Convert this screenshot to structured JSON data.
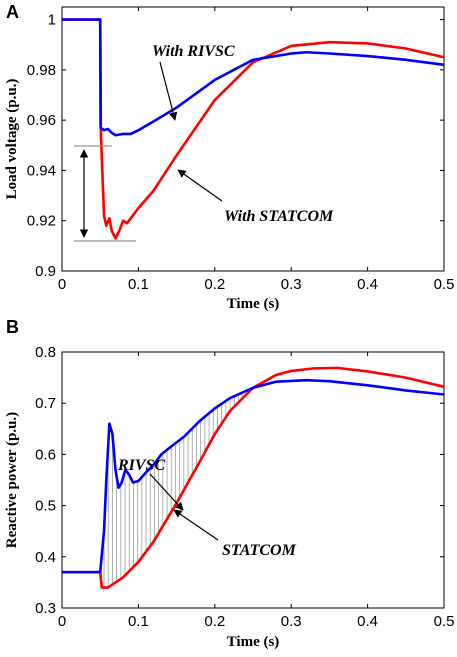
{
  "chart_data": [
    {
      "type": "line",
      "panel_label": "A",
      "xlabel": "Time (s)",
      "ylabel": "Load voltage (p.u.)",
      "xlim": [
        0,
        0.5
      ],
      "ylim": [
        0.9,
        1.005
      ],
      "xticks": [
        "0",
        "0.1",
        "0.2",
        "0.3",
        "0.4",
        "0.5"
      ],
      "yticks": [
        "0.9",
        "0.92",
        "0.94",
        "0.96",
        "0.98",
        "1"
      ],
      "xtick_values": [
        0,
        0.1,
        0.2,
        0.3,
        0.4,
        0.5
      ],
      "ytick_values": [
        0.9,
        0.92,
        0.94,
        0.96,
        0.98,
        1.0
      ],
      "series": [
        {
          "label": "With RIVSC",
          "color": "#0000ff",
          "points": [
            [
              0,
              1.0
            ],
            [
              0.05,
              1.0
            ],
            [
              0.0505,
              0.957
            ],
            [
              0.055,
              0.956
            ],
            [
              0.06,
              0.9565
            ],
            [
              0.065,
              0.955
            ],
            [
              0.07,
              0.954
            ],
            [
              0.08,
              0.9545
            ],
            [
              0.09,
              0.9545
            ],
            [
              0.1,
              0.956
            ],
            [
              0.12,
              0.9595
            ],
            [
              0.15,
              0.965
            ],
            [
              0.2,
              0.976
            ],
            [
              0.25,
              0.984
            ],
            [
              0.3,
              0.9865
            ],
            [
              0.32,
              0.987
            ],
            [
              0.35,
              0.9865
            ],
            [
              0.4,
              0.9855
            ],
            [
              0.45,
              0.984
            ],
            [
              0.5,
              0.982
            ]
          ]
        },
        {
          "label": "With STATCOM",
          "color": "#ff0000",
          "points": [
            [
              0,
              1.0
            ],
            [
              0.05,
              1.0
            ],
            [
              0.051,
              0.954
            ],
            [
              0.055,
              0.922
            ],
            [
              0.058,
              0.918
            ],
            [
              0.062,
              0.921
            ],
            [
              0.065,
              0.916
            ],
            [
              0.07,
              0.913
            ],
            [
              0.075,
              0.916
            ],
            [
              0.08,
              0.92
            ],
            [
              0.085,
              0.919
            ],
            [
              0.09,
              0.921
            ],
            [
              0.1,
              0.925
            ],
            [
              0.12,
              0.932
            ],
            [
              0.15,
              0.946
            ],
            [
              0.2,
              0.968
            ],
            [
              0.25,
              0.983
            ],
            [
              0.3,
              0.9895
            ],
            [
              0.35,
              0.991
            ],
            [
              0.4,
              0.9905
            ],
            [
              0.45,
              0.9885
            ],
            [
              0.5,
              0.985
            ]
          ]
        }
      ],
      "annotations": [
        "With RIVSC",
        "With STATCOM"
      ]
    },
    {
      "type": "line",
      "panel_label": "B",
      "xlabel": "Time (s)",
      "ylabel": "Reactive power (p.u.)",
      "xlim": [
        0,
        0.5
      ],
      "ylim": [
        0.3,
        0.8
      ],
      "xticks": [
        "0",
        "0.1",
        "0.2",
        "0.3",
        "0.4",
        "0.5"
      ],
      "yticks": [
        "0.3",
        "0.4",
        "0.5",
        "0.6",
        "0.7",
        "0.8"
      ],
      "xtick_values": [
        0,
        0.1,
        0.2,
        0.3,
        0.4,
        0.5
      ],
      "ytick_values": [
        0.3,
        0.4,
        0.5,
        0.6,
        0.7,
        0.8
      ],
      "series": [
        {
          "label": "RIVSC",
          "color": "#0000ff",
          "points": [
            [
              0,
              0.37
            ],
            [
              0.05,
              0.37
            ],
            [
              0.055,
              0.45
            ],
            [
              0.058,
              0.55
            ],
            [
              0.062,
              0.66
            ],
            [
              0.066,
              0.64
            ],
            [
              0.07,
              0.57
            ],
            [
              0.074,
              0.535
            ],
            [
              0.078,
              0.545
            ],
            [
              0.083,
              0.57
            ],
            [
              0.088,
              0.56
            ],
            [
              0.093,
              0.545
            ],
            [
              0.1,
              0.548
            ],
            [
              0.11,
              0.565
            ],
            [
              0.12,
              0.58
            ],
            [
              0.13,
              0.6
            ],
            [
              0.14,
              0.612
            ],
            [
              0.16,
              0.635
            ],
            [
              0.18,
              0.665
            ],
            [
              0.2,
              0.69
            ],
            [
              0.22,
              0.71
            ],
            [
              0.25,
              0.73
            ],
            [
              0.28,
              0.742
            ],
            [
              0.32,
              0.745
            ],
            [
              0.35,
              0.743
            ],
            [
              0.4,
              0.735
            ],
            [
              0.45,
              0.725
            ],
            [
              0.5,
              0.717
            ]
          ]
        },
        {
          "label": "STATCOM",
          "color": "#ff0000",
          "points": [
            [
              0,
              0.37
            ],
            [
              0.05,
              0.37
            ],
            [
              0.052,
              0.34
            ],
            [
              0.06,
              0.34
            ],
            [
              0.08,
              0.36
            ],
            [
              0.1,
              0.39
            ],
            [
              0.12,
              0.43
            ],
            [
              0.15,
              0.505
            ],
            [
              0.18,
              0.585
            ],
            [
              0.2,
              0.64
            ],
            [
              0.22,
              0.685
            ],
            [
              0.25,
              0.73
            ],
            [
              0.28,
              0.755
            ],
            [
              0.3,
              0.763
            ],
            [
              0.33,
              0.768
            ],
            [
              0.36,
              0.769
            ],
            [
              0.4,
              0.762
            ],
            [
              0.45,
              0.75
            ],
            [
              0.5,
              0.732
            ]
          ]
        }
      ],
      "annotations": [
        "RIVSC",
        "STATCOM"
      ]
    }
  ]
}
